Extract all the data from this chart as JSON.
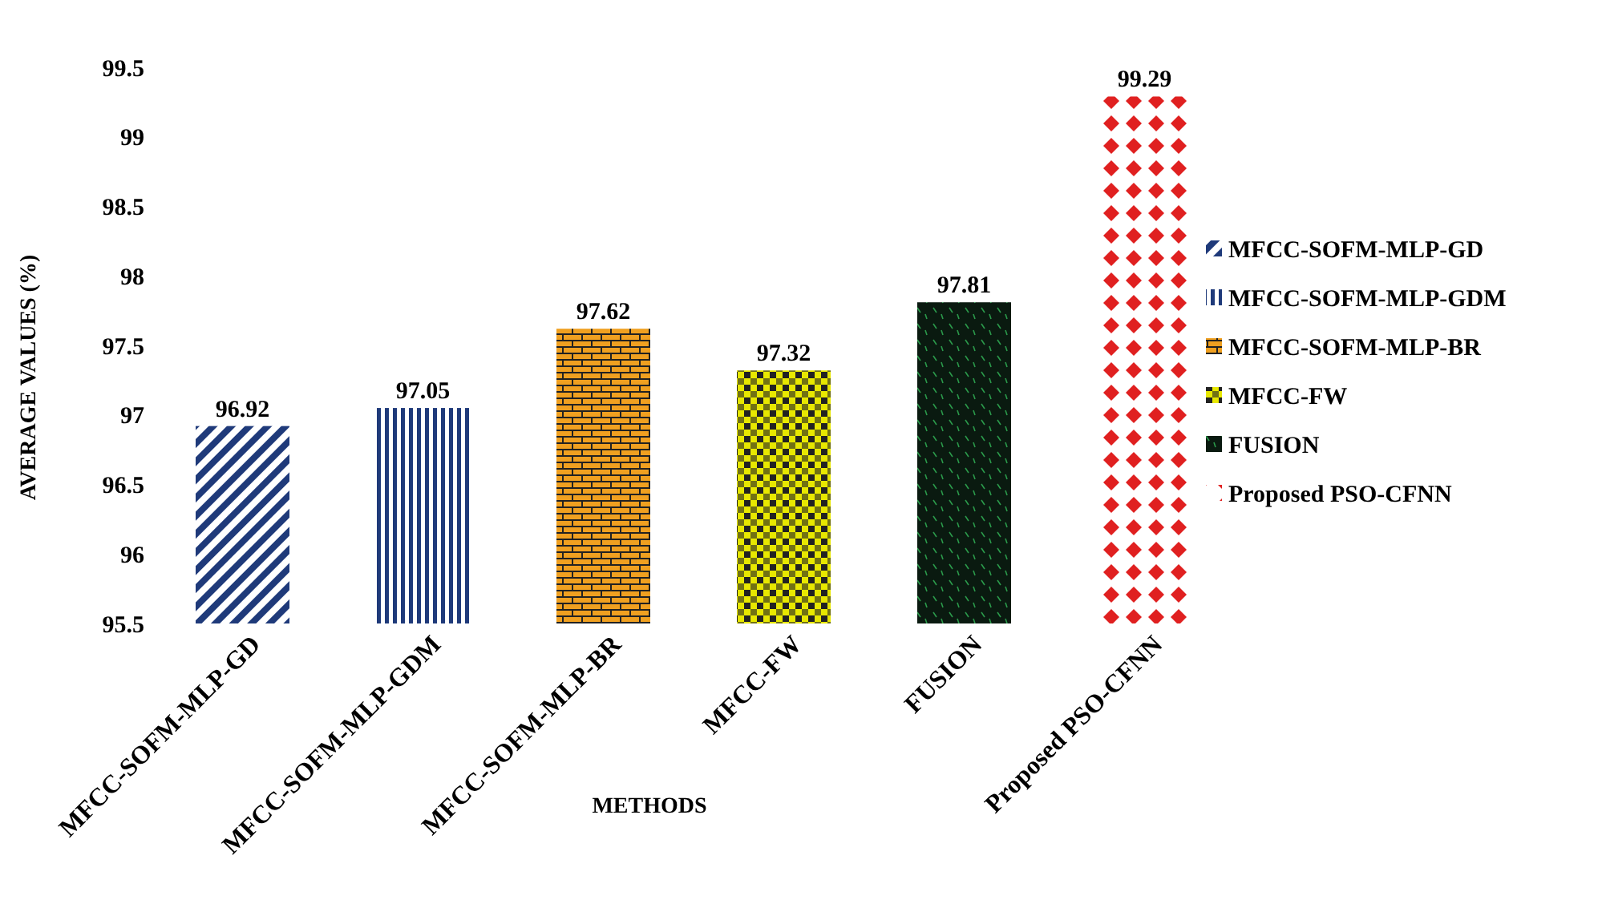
{
  "chart_data": {
    "type": "bar",
    "xlabel": "METHODS",
    "ylabel": "AVERAGE VALUES (%)",
    "categories": [
      "MFCC-SOFM-MLP-GD",
      "MFCC-SOFM-MLP-GDM",
      "MFCC-SOFM-MLP-BR",
      "MFCC-FW",
      "FUSION",
      "Proposed PSO-CFNN"
    ],
    "series": [
      {
        "name": "MFCC-SOFM-MLP-GD",
        "color": "#1f3a7a",
        "values": [
          96.92,
          null,
          null,
          null,
          null,
          null
        ]
      },
      {
        "name": "MFCC-SOFM-MLP-GDM",
        "color": "#1f3a7a",
        "values": [
          null,
          97.05,
          null,
          null,
          null,
          null
        ]
      },
      {
        "name": "MFCC-SOFM-MLP-BR",
        "color": "#f0a020",
        "values": [
          null,
          null,
          97.62,
          null,
          null,
          null
        ]
      },
      {
        "name": "MFCC-FW",
        "color": "#e8e800",
        "values": [
          null,
          null,
          null,
          97.32,
          null,
          null
        ]
      },
      {
        "name": "FUSION",
        "color": "#0a1a10",
        "values": [
          null,
          null,
          null,
          null,
          97.81,
          null
        ]
      },
      {
        "name": "Proposed PSO-CFNN",
        "color": "#e02020",
        "values": [
          null,
          null,
          null,
          null,
          null,
          99.29
        ]
      }
    ],
    "ylim": [
      95.5,
      99.5
    ],
    "yticks": [
      95.5,
      96,
      96.5,
      97,
      97.5,
      98,
      98.5,
      99,
      99.5
    ],
    "data_labels": true,
    "legend": "right"
  }
}
